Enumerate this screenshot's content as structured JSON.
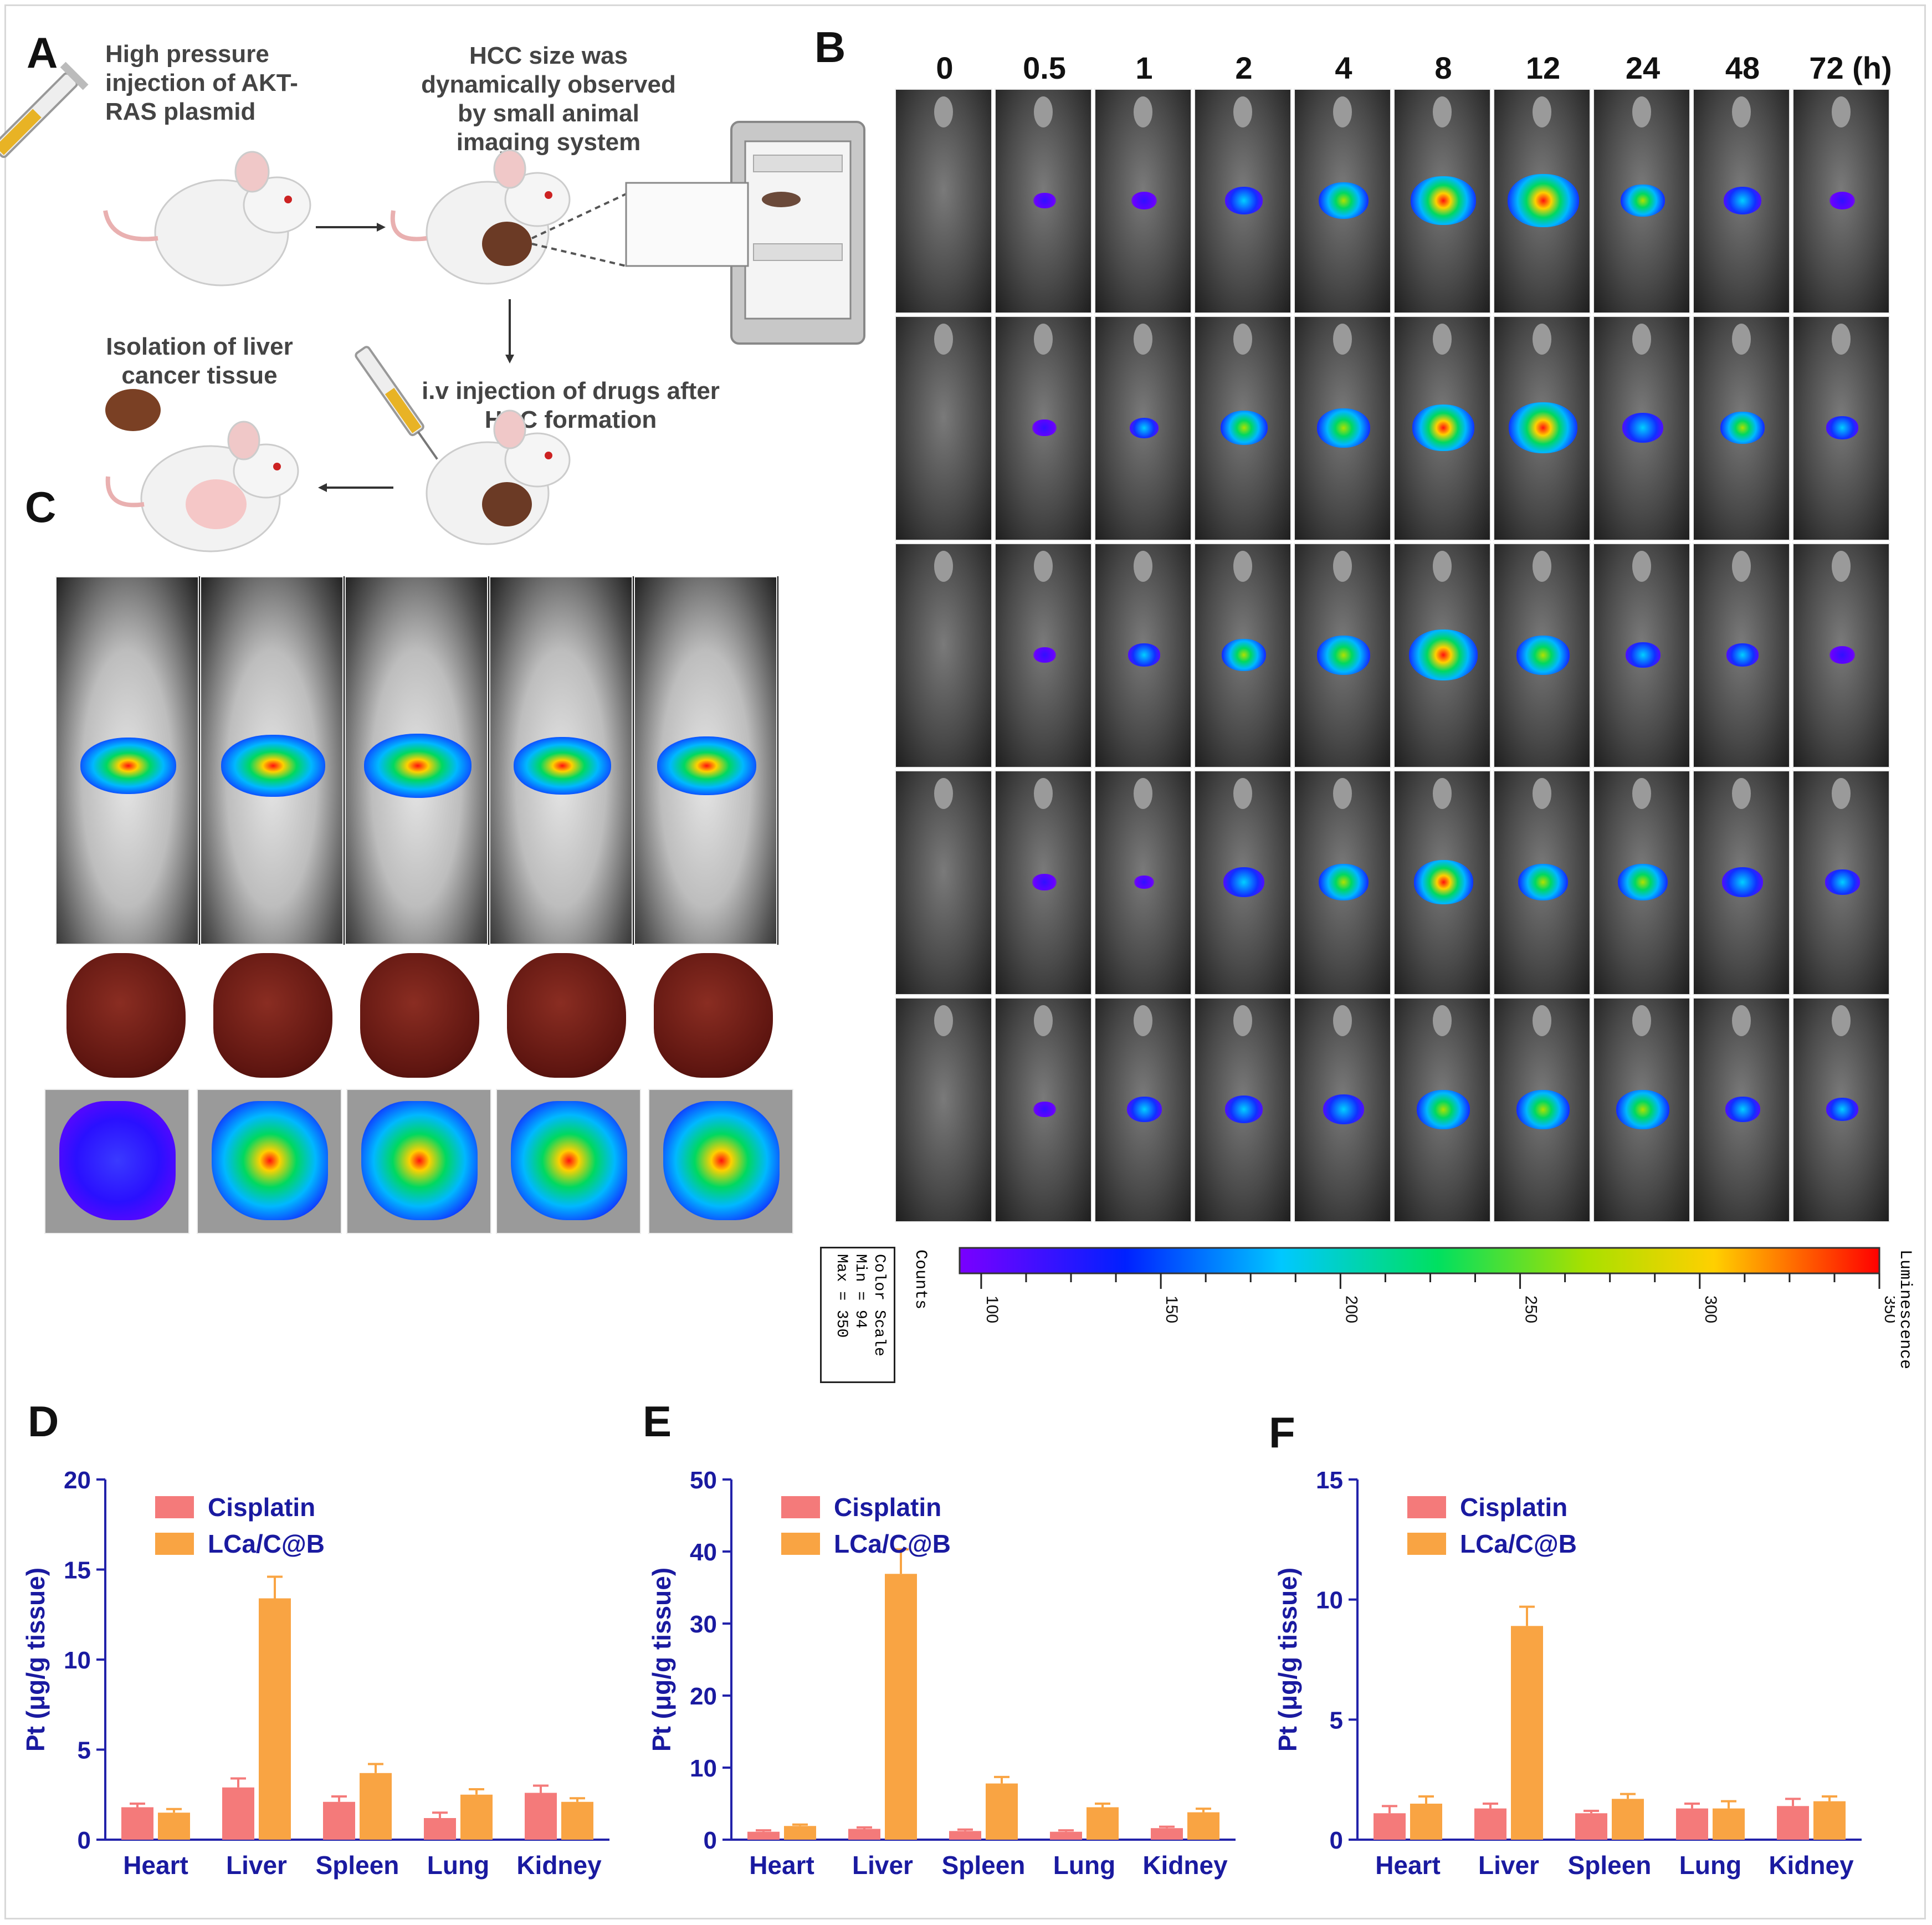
{
  "panels": {
    "A": "A",
    "B": "B",
    "C": "C",
    "D": "D",
    "E": "E",
    "F": "F"
  },
  "panelA": {
    "step1": [
      "High pressure",
      "injection of AKT-",
      "RAS plasmid"
    ],
    "step2": [
      "HCC size was",
      "dynamically observed",
      "by small animal",
      "imaging system"
    ],
    "step3": [
      "Isolation of liver",
      "cancer tissue"
    ],
    "step4": [
      "i.v injection of drugs after",
      "HCC formation"
    ]
  },
  "panelB": {
    "timepoints": [
      "0",
      "0.5",
      "1",
      "2",
      "4",
      "8",
      "12",
      "24",
      "48",
      "72 (h)"
    ],
    "intensity": [
      [
        0,
        0.1,
        0.15,
        0.35,
        0.55,
        0.8,
        0.9,
        0.45,
        0.35,
        0.15
      ],
      [
        0,
        0.12,
        0.2,
        0.5,
        0.6,
        0.75,
        0.85,
        0.4,
        0.45,
        0.25
      ],
      [
        0,
        0.1,
        0.25,
        0.45,
        0.6,
        0.85,
        0.6,
        0.3,
        0.25,
        0.15
      ],
      [
        0,
        0.12,
        0.05,
        0.4,
        0.55,
        0.7,
        0.55,
        0.55,
        0.4,
        0.3
      ],
      [
        0,
        0.1,
        0.3,
        0.35,
        0.4,
        0.6,
        0.6,
        0.6,
        0.3,
        0.25
      ]
    ]
  },
  "colorScale": {
    "counts_label": "Counts",
    "luminescence_label": "Luminescence",
    "box_lines": [
      "Color Scale",
      "Min = 94",
      "Max = 350"
    ],
    "ticks": [
      "100",
      "150",
      "200",
      "250",
      "300",
      "350"
    ],
    "min": 94,
    "max": 350
  },
  "colors": {
    "cisplatin": "#f47a7a",
    "lca": "#f9a443",
    "axis": "#2222aa",
    "tick": "#1a1aa0"
  },
  "chart_data": [
    {
      "panel": "D",
      "type": "bar",
      "categories": [
        "Heart",
        "Liver",
        "Spleen",
        "Lung",
        "Kidney"
      ],
      "series": [
        {
          "name": "Cisplatin",
          "values": [
            1.8,
            2.9,
            2.1,
            1.2,
            2.6
          ],
          "errors": [
            0.2,
            0.5,
            0.3,
            0.3,
            0.4
          ]
        },
        {
          "name": "LCa/C@B",
          "values": [
            1.5,
            13.4,
            3.7,
            2.5,
            2.1
          ],
          "errors": [
            0.2,
            1.2,
            0.5,
            0.3,
            0.2
          ]
        }
      ],
      "ylabel": "Pt (μg/g tissue)",
      "ylim": [
        0,
        20
      ],
      "yticks": [
        "0",
        "5",
        "10",
        "15",
        "20"
      ]
    },
    {
      "panel": "E",
      "type": "bar",
      "categories": [
        "Heart",
        "Liver",
        "Spleen",
        "Lung",
        "Kidney"
      ],
      "series": [
        {
          "name": "Cisplatin",
          "values": [
            1.1,
            1.5,
            1.2,
            1.1,
            1.6
          ],
          "errors": [
            0.2,
            0.2,
            0.2,
            0.2,
            0.2
          ]
        },
        {
          "name": "LCa/C@B",
          "values": [
            1.9,
            36.9,
            7.8,
            4.5,
            3.8
          ],
          "errors": [
            0.2,
            3.4,
            0.9,
            0.5,
            0.5
          ]
        }
      ],
      "ylabel": "Pt (μg/g tissue)",
      "ylim": [
        0,
        50
      ],
      "yticks": [
        "0",
        "10",
        "20",
        "30",
        "40",
        "50"
      ]
    },
    {
      "panel": "F",
      "type": "bar",
      "categories": [
        "Heart",
        "Liver",
        "Spleen",
        "Lung",
        "Kidney"
      ],
      "series": [
        {
          "name": "Cisplatin",
          "values": [
            1.1,
            1.3,
            1.1,
            1.3,
            1.4
          ],
          "errors": [
            0.3,
            0.2,
            0.1,
            0.2,
            0.3
          ]
        },
        {
          "name": "LCa/C@B",
          "values": [
            1.5,
            8.9,
            1.7,
            1.3,
            1.6
          ],
          "errors": [
            0.3,
            0.8,
            0.2,
            0.3,
            0.2
          ]
        }
      ],
      "ylabel": "Pt (μg/g tissue)",
      "ylim": [
        0,
        15
      ],
      "yticks": [
        "0",
        "5",
        "10",
        "15"
      ]
    }
  ]
}
